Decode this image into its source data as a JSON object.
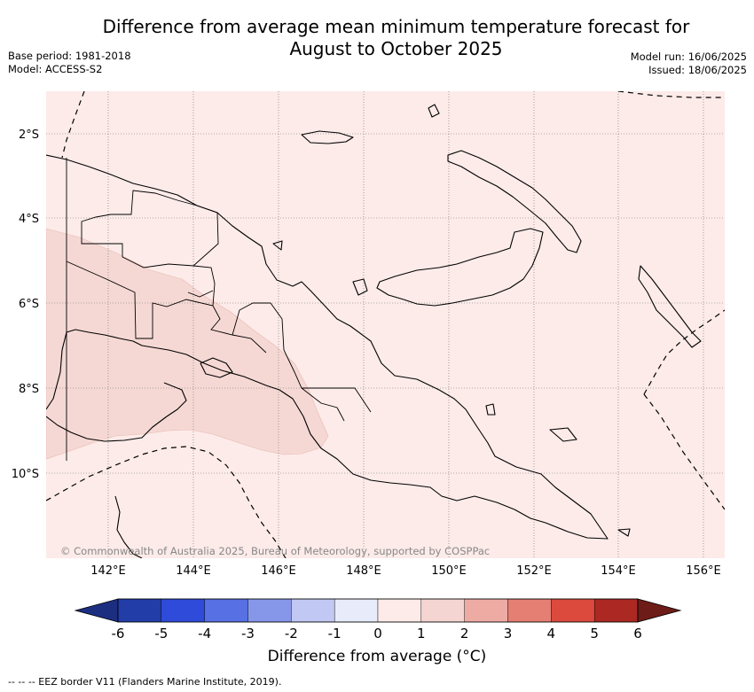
{
  "header": {
    "title_line1": "Difference from average mean minimum temperature forecast for",
    "title_line2": "August to October 2025",
    "base_period": "Base period: 1981-2018",
    "model": "Model: ACCESS-S2",
    "model_run": "Model run: 16/06/2025",
    "issued": "Issued: 18/06/2025"
  },
  "map": {
    "lat_labels": [
      "2°S",
      "4°S",
      "6°S",
      "8°S",
      "10°S"
    ],
    "lon_labels": [
      "142°E",
      "144°E",
      "146°E",
      "148°E",
      "150°E",
      "152°E",
      "154°E",
      "156°E"
    ],
    "copyright": "© Commonwealth of Australia 2025, Bureau of Meteorology, supported by COSPPac",
    "background_category": "0 to 1",
    "highlight_category": "1 to 2"
  },
  "colorbar": {
    "ticks": [
      "-6",
      "-5",
      "-4",
      "-3",
      "-2",
      "-1",
      "0",
      "1",
      "2",
      "3",
      "4",
      "5",
      "6"
    ],
    "colors": [
      "#223da8",
      "#2e4bd9",
      "#5770e3",
      "#8697ea",
      "#c1c8f3",
      "#e8ecfa",
      "#fcebe9",
      "#f5d5d1",
      "#eeaba4",
      "#e57e73",
      "#db4a3d",
      "#ac2822"
    ],
    "extend_low_color": "#1c2e80",
    "extend_high_color": "#6e1c17",
    "label": "Difference from average (°C)"
  },
  "footnote": "--  --  -- EEZ border V11 (Flanders Marine Institute, 2019)."
}
